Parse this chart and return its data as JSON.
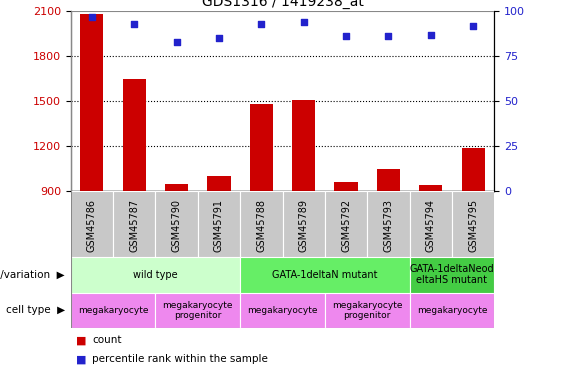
{
  "title": "GDS1316 / 1419238_at",
  "samples": [
    "GSM45786",
    "GSM45787",
    "GSM45790",
    "GSM45791",
    "GSM45788",
    "GSM45789",
    "GSM45792",
    "GSM45793",
    "GSM45794",
    "GSM45795"
  ],
  "bar_values": [
    2080,
    1650,
    950,
    1000,
    1480,
    1510,
    960,
    1050,
    940,
    1190
  ],
  "dot_values": [
    97,
    93,
    83,
    85,
    93,
    94,
    86,
    86,
    87,
    92
  ],
  "bar_color": "#cc0000",
  "dot_color": "#2222cc",
  "ylim_left": [
    900,
    2100
  ],
  "ylim_right": [
    0,
    100
  ],
  "yticks_left": [
    900,
    1200,
    1500,
    1800,
    2100
  ],
  "yticks_right": [
    0,
    25,
    50,
    75,
    100
  ],
  "grid_lines": [
    1200,
    1500,
    1800
  ],
  "genotype_groups": [
    {
      "label": "wild type",
      "start": 0,
      "end": 3,
      "color": "#ccffcc"
    },
    {
      "label": "GATA-1deltaN mutant",
      "start": 4,
      "end": 7,
      "color": "#66ee66"
    },
    {
      "label": "GATA-1deltaNeod\neltaHS mutant",
      "start": 8,
      "end": 9,
      "color": "#44cc44"
    }
  ],
  "cell_type_groups": [
    {
      "label": "megakaryocyte",
      "start": 0,
      "end": 1,
      "color": "#ee88ee"
    },
    {
      "label": "megakaryocyte\nprogenitor",
      "start": 2,
      "end": 3,
      "color": "#ee88ee"
    },
    {
      "label": "megakaryocyte",
      "start": 4,
      "end": 5,
      "color": "#ee88ee"
    },
    {
      "label": "megakaryocyte\nprogenitor",
      "start": 6,
      "end": 7,
      "color": "#ee88ee"
    },
    {
      "label": "megakaryocyte",
      "start": 8,
      "end": 9,
      "color": "#ee88ee"
    }
  ],
  "xlabel_color": "#cc0000",
  "ylabel_right_color": "#2222cc",
  "genotype_label": "genotype/variation",
  "celltype_label": "cell type",
  "legend_count": "count",
  "legend_percentile": "percentile rank within the sample",
  "xtick_bg_color": "#c8c8c8",
  "border_color": "#888888"
}
